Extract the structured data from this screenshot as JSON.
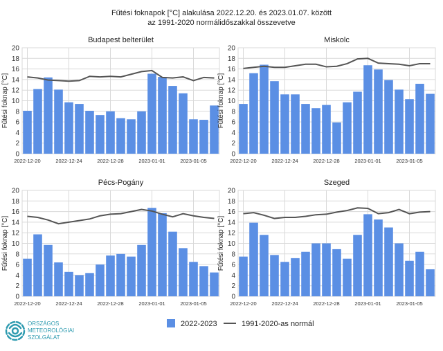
{
  "title_line1": "Fűtési foknapok [°C] alakulása 2022.12.20. és 2023.01.07. között",
  "title_line2": "az 1991-2020 normálidőszakkal összevetve",
  "legend": {
    "bar_label": "2022-2023",
    "line_label": "1991-2020-as normál"
  },
  "colors": {
    "bar": "#5b8fe4",
    "line": "#555555",
    "grid": "#d9d9d9",
    "logo": "#2e9bb0"
  },
  "logo": {
    "icon": "omsz-swirl-logo",
    "lines": [
      "ORSZÁGOS",
      "METEOROLÓGIAI",
      "SZOLGÁLAT"
    ]
  },
  "chart_data": [
    {
      "type": "bar",
      "title": "Budapest belterület",
      "ylabel": "Fűtési foknap [°C]",
      "ylim": [
        0,
        20
      ],
      "yticks": [
        0,
        2,
        4,
        6,
        8,
        10,
        12,
        14,
        16,
        18,
        20
      ],
      "xtick_labels": [
        "2022-12-20",
        "2022-12-24",
        "2022-12-28",
        "2023-01-01",
        "2023-01-05"
      ],
      "categories": [
        "2022-12-20",
        "2022-12-21",
        "2022-12-22",
        "2022-12-23",
        "2022-12-24",
        "2022-12-25",
        "2022-12-26",
        "2022-12-27",
        "2022-12-28",
        "2022-12-29",
        "2022-12-30",
        "2022-12-31",
        "2023-01-01",
        "2023-01-02",
        "2023-01-03",
        "2023-01-04",
        "2023-01-05",
        "2023-01-06",
        "2023-01-07"
      ],
      "series": [
        {
          "name": "2022-2023",
          "values": [
            8.1,
            12.2,
            14.4,
            12.1,
            9.7,
            9.4,
            8.1,
            7.3,
            8.0,
            6.7,
            6.5,
            8.0,
            15.1,
            14.5,
            12.8,
            11.4,
            6.5,
            6.4,
            9.1
          ]
        },
        {
          "name": "1991-2020-as normál",
          "values": [
            14.5,
            14.3,
            13.9,
            13.8,
            13.7,
            13.8,
            14.6,
            14.5,
            14.6,
            14.5,
            15.0,
            15.5,
            15.7,
            14.4,
            14.3,
            14.5,
            13.8,
            14.4,
            14.3
          ]
        }
      ],
      "grid": true
    },
    {
      "type": "bar",
      "title": "Miskolc",
      "ylabel": "Fűtési foknap [°C]",
      "ylim": [
        0,
        20
      ],
      "yticks": [
        0,
        2,
        4,
        6,
        8,
        10,
        12,
        14,
        16,
        18,
        20
      ],
      "xtick_labels": [
        "2022-12-20",
        "2022-12-24",
        "2022-12-28",
        "2023-01-01",
        "2023-01-05"
      ],
      "categories": [
        "2022-12-20",
        "2022-12-21",
        "2022-12-22",
        "2022-12-23",
        "2022-12-24",
        "2022-12-25",
        "2022-12-26",
        "2022-12-27",
        "2022-12-28",
        "2022-12-29",
        "2022-12-30",
        "2022-12-31",
        "2023-01-01",
        "2023-01-02",
        "2023-01-03",
        "2023-01-04",
        "2023-01-05",
        "2023-01-06",
        "2023-01-07"
      ],
      "series": [
        {
          "name": "2022-2023",
          "values": [
            9.4,
            15.2,
            16.8,
            13.7,
            11.2,
            11.2,
            9.4,
            8.6,
            9.2,
            5.9,
            9.7,
            11.7,
            16.7,
            15.9,
            13.9,
            12.1,
            10.3,
            13.2,
            11.3
          ]
        },
        {
          "name": "1991-2020-as normál",
          "values": [
            16.1,
            16.3,
            16.5,
            16.3,
            16.3,
            16.6,
            16.9,
            16.9,
            16.4,
            16.5,
            17.0,
            17.9,
            18.0,
            17.1,
            17.0,
            16.9,
            16.6,
            17.0,
            17.0
          ]
        }
      ],
      "grid": true
    },
    {
      "type": "bar",
      "title": "Pécs-Pogány",
      "ylabel": "Fűtési foknap [°C]",
      "ylim": [
        0,
        20
      ],
      "yticks": [
        0,
        2,
        4,
        6,
        8,
        10,
        12,
        14,
        16,
        18,
        20
      ],
      "xtick_labels": [
        "2022-12-20",
        "2022-12-24",
        "2022-12-28",
        "2023-01-01",
        "2023-01-05"
      ],
      "categories": [
        "2022-12-20",
        "2022-12-21",
        "2022-12-22",
        "2022-12-23",
        "2022-12-24",
        "2022-12-25",
        "2022-12-26",
        "2022-12-27",
        "2022-12-28",
        "2022-12-29",
        "2022-12-30",
        "2022-12-31",
        "2023-01-01",
        "2023-01-02",
        "2023-01-03",
        "2023-01-04",
        "2023-01-05",
        "2023-01-06",
        "2023-01-07"
      ],
      "series": [
        {
          "name": "2022-2023",
          "values": [
            7.1,
            11.7,
            9.7,
            6.4,
            4.6,
            4.0,
            4.4,
            6.0,
            7.7,
            8.0,
            7.5,
            9.7,
            16.7,
            15.7,
            12.2,
            9.1,
            6.5,
            5.7,
            4.5
          ]
        },
        {
          "name": "1991-2020-as normál",
          "values": [
            15.1,
            14.9,
            14.4,
            13.7,
            14.0,
            14.3,
            14.6,
            15.2,
            15.5,
            15.6,
            16.0,
            16.4,
            16.1,
            15.5,
            15.0,
            15.6,
            15.2,
            14.9,
            14.7
          ]
        }
      ],
      "grid": true
    },
    {
      "type": "bar",
      "title": "Szeged",
      "ylabel": "Fűtési foknap [°C]",
      "ylim": [
        0,
        20
      ],
      "yticks": [
        0,
        2,
        4,
        6,
        8,
        10,
        12,
        14,
        16,
        18,
        20
      ],
      "xtick_labels": [
        "2022-12-20",
        "2022-12-24",
        "2022-12-28",
        "2023-01-01",
        "2023-01-05"
      ],
      "categories": [
        "2022-12-20",
        "2022-12-21",
        "2022-12-22",
        "2022-12-23",
        "2022-12-24",
        "2022-12-25",
        "2022-12-26",
        "2022-12-27",
        "2022-12-28",
        "2022-12-29",
        "2022-12-30",
        "2022-12-31",
        "2023-01-01",
        "2023-01-02",
        "2023-01-03",
        "2023-01-04",
        "2023-01-05",
        "2023-01-06",
        "2023-01-07"
      ],
      "series": [
        {
          "name": "2022-2023",
          "values": [
            7.5,
            13.9,
            11.6,
            7.8,
            6.5,
            7.2,
            8.4,
            10.0,
            10.0,
            8.9,
            7.1,
            11.6,
            15.5,
            14.5,
            13.0,
            10.0,
            6.7,
            8.4,
            5.1
          ]
        },
        {
          "name": "1991-2020-as normál",
          "values": [
            15.6,
            15.8,
            15.3,
            14.7,
            14.9,
            14.9,
            15.1,
            15.4,
            15.5,
            15.9,
            16.2,
            16.7,
            16.6,
            15.6,
            15.8,
            16.4,
            15.6,
            15.9,
            16.0
          ]
        }
      ],
      "grid": true
    }
  ]
}
